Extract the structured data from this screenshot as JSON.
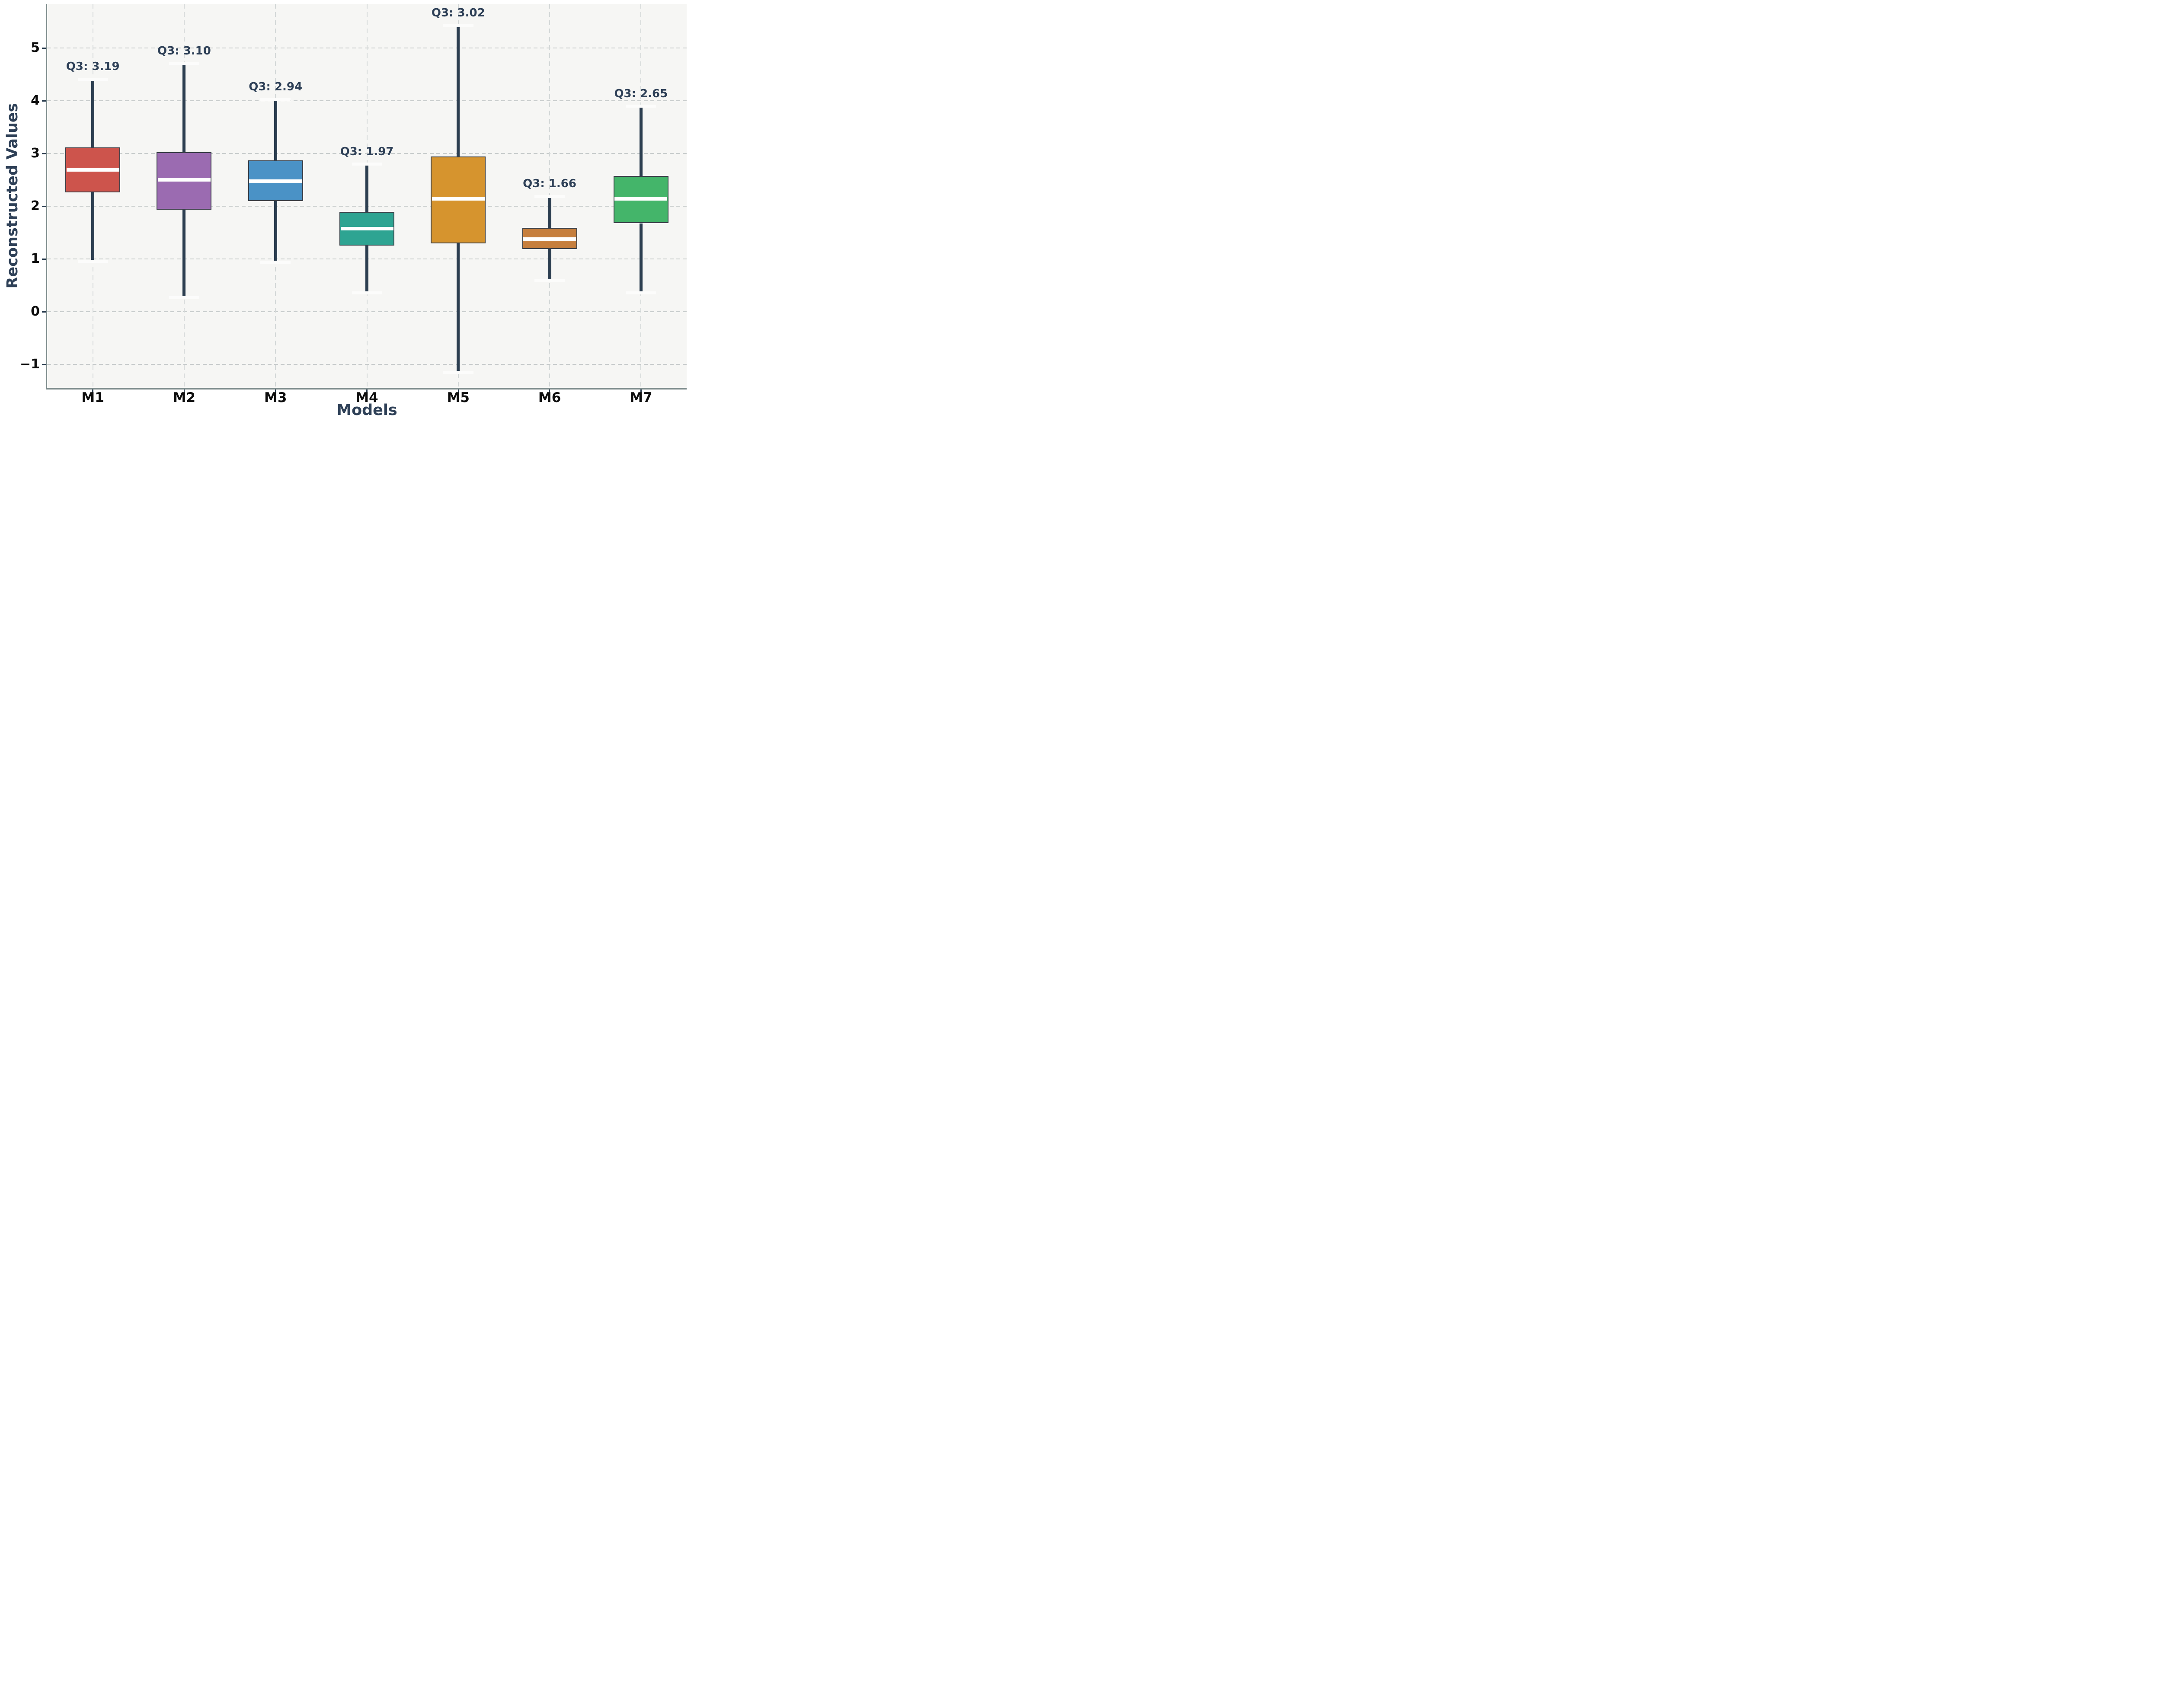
{
  "chart_data": {
    "type": "box",
    "title": "",
    "xlabel": "Models",
    "ylabel": "Reconstructed Values",
    "categories": [
      "M1",
      "M2",
      "M3",
      "M4",
      "M5",
      "M6",
      "M7"
    ],
    "y_ticks": [
      5,
      4,
      3,
      2,
      1,
      0,
      -1
    ],
    "y_tick_labels": [
      "5",
      "4",
      "3",
      "2",
      "1",
      "0",
      "−1"
    ],
    "ylim": [
      -1.44,
      5.84
    ],
    "grid": {
      "horizontal": true,
      "vertical": true,
      "style": "dashed"
    },
    "legend": "none",
    "boxes": [
      {
        "label": "M1",
        "whisker_low": 1.03,
        "q1": 2.34,
        "median": 2.76,
        "q3": 3.19,
        "whisker_high": 4.48,
        "color": "#cd544c",
        "annotation": "Q3: 3.19"
      },
      {
        "label": "M2",
        "whisker_low": 0.34,
        "q1": 2.01,
        "median": 2.57,
        "q3": 3.1,
        "whisker_high": 4.78,
        "color": "#9b6bb1",
        "annotation": "Q3: 3.10"
      },
      {
        "label": "M3",
        "whisker_low": 1.01,
        "q1": 2.17,
        "median": 2.55,
        "q3": 2.94,
        "whisker_high": 4.1,
        "color": "#4a92c6",
        "annotation": "Q3: 2.94"
      },
      {
        "label": "M4",
        "whisker_low": 0.43,
        "q1": 1.33,
        "median": 1.65,
        "q3": 1.97,
        "whisker_high": 2.87,
        "color": "#2ea492",
        "annotation": "Q3: 1.97"
      },
      {
        "label": "M5",
        "whisker_low": -1.08,
        "q1": 1.37,
        "median": 2.21,
        "q3": 3.02,
        "whisker_high": 5.5,
        "color": "#d6942e",
        "annotation": "Q3: 3.02"
      },
      {
        "label": "M6",
        "whisker_low": 0.66,
        "q1": 1.26,
        "median": 1.45,
        "q3": 1.66,
        "whisker_high": 2.26,
        "color": "#c67f3e",
        "annotation": "Q3: 1.66"
      },
      {
        "label": "M7",
        "whisker_low": 0.43,
        "q1": 1.75,
        "median": 2.21,
        "q3": 2.65,
        "whisker_high": 3.97,
        "color": "#44b56a",
        "annotation": "Q3: 2.65"
      }
    ],
    "style_colors": {
      "plot_background": "#f6f6f4",
      "figure_background": "#ffffff",
      "whisker": "#2c3e50",
      "box_edge": "#383e46",
      "median_line": "#ffffff",
      "whisker_cap": "#fcfcfb",
      "grid_horizontal": "#c8cccc",
      "grid_vertical": "#d4d8d8",
      "spine": "#7b8a8a",
      "tick_label": "#0d0d0d",
      "axis_title": "#2e4057",
      "annotation_text": "#2e4057"
    }
  }
}
